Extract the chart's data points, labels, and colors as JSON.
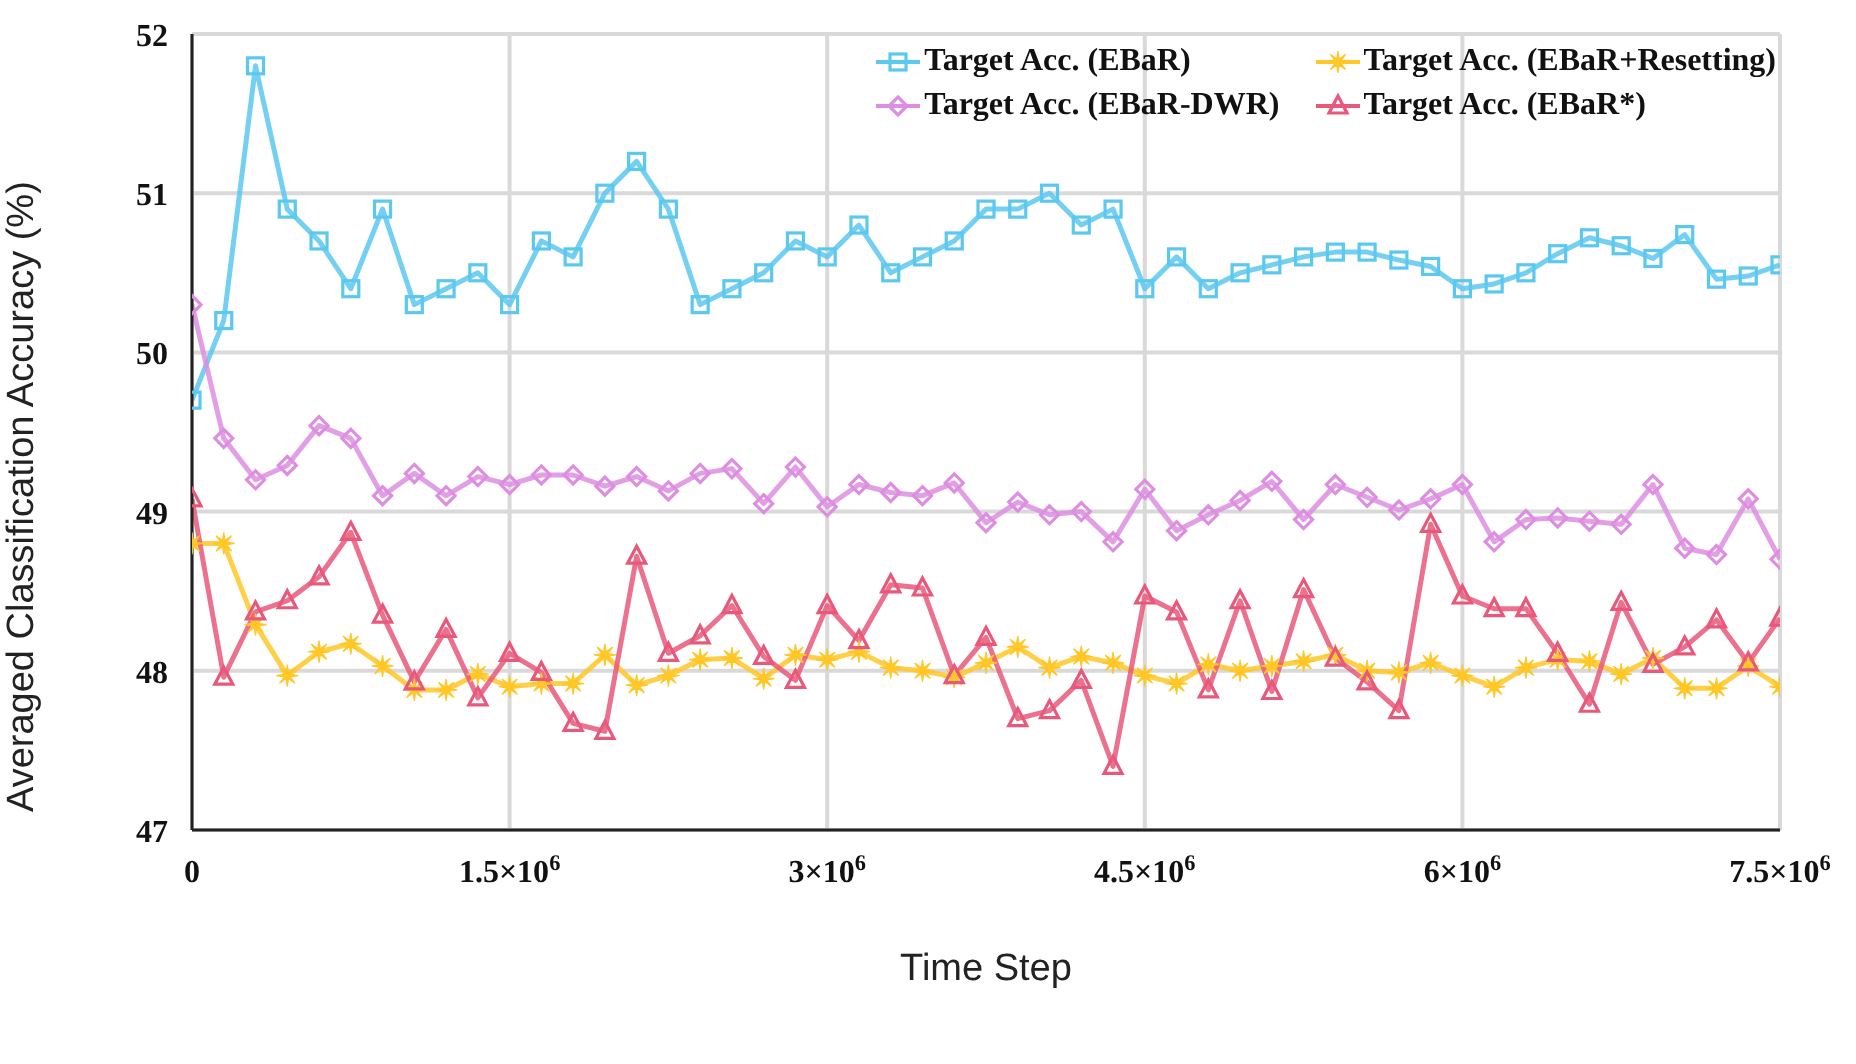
{
  "chart_data": {
    "type": "line",
    "xlabel": "Time Step",
    "ylabel": "Averaged Classification Accuracy (%)",
    "x": [
      0,
      150000,
      300000,
      450000,
      600000,
      750000,
      900000,
      1050000,
      1200000,
      1350000,
      1500000,
      1650000,
      1800000,
      1950000,
      2100000,
      2250000,
      2400000,
      2550000,
      2700000,
      2850000,
      3000000,
      3150000,
      3300000,
      3450000,
      3600000,
      3750000,
      3900000,
      4050000,
      4200000,
      4350000,
      4500000,
      4650000,
      4800000,
      4950000,
      5100000,
      5250000,
      5400000,
      5550000,
      5700000,
      5850000,
      6000000,
      6150000,
      6300000,
      6450000,
      6600000,
      6750000,
      6900000,
      7050000,
      7200000,
      7350000,
      7500000
    ],
    "xlim": [
      0,
      7500000
    ],
    "xticks": [
      0,
      {
        "value": 1500000,
        "label": "1.5×10$^{6}$"
      },
      {
        "value": 3000000,
        "label": "3×10$^{6}$"
      },
      {
        "value": 4500000,
        "label": "4.5×10$^{6}$"
      },
      {
        "value": 6000000,
        "label": "6×10$^{6}$"
      },
      {
        "value": 7500000,
        "label": "7.5×10$^{6}$"
      }
    ],
    "ylim": [
      47,
      52
    ],
    "yticks": [
      47,
      48,
      49,
      50,
      51,
      52
    ],
    "grid": true,
    "legend": "top right",
    "line_style": "solid",
    "series": [
      {
        "name": "Target Acc. (EBaR)",
        "color": "#5bc8f0",
        "marker": "square",
        "values": [
          49.7,
          50.2,
          51.8,
          50.9,
          50.7,
          50.4,
          50.9,
          50.3,
          50.4,
          50.5,
          50.3,
          50.7,
          50.6,
          51.0,
          51.2,
          50.9,
          50.3,
          50.4,
          50.5,
          50.7,
          50.6,
          50.8,
          50.5,
          50.6,
          50.7,
          50.9,
          50.9,
          51.0,
          50.8,
          50.9,
          50.4,
          50.6,
          50.4,
          50.5,
          50.55,
          50.6,
          50.63,
          50.63,
          50.58,
          50.54,
          50.4,
          50.43,
          50.5,
          50.62,
          50.72,
          50.67,
          50.59,
          50.74,
          50.46,
          50.48,
          50.55
        ]
      },
      {
        "name": "Target Acc. (EBaR+Resetting)",
        "color": "#ffc727",
        "marker": "star",
        "values": [
          48.8,
          48.8,
          48.29,
          47.97,
          48.12,
          48.17,
          48.03,
          47.88,
          47.88,
          47.98,
          47.9,
          47.92,
          47.92,
          48.1,
          47.91,
          47.97,
          48.07,
          48.08,
          47.95,
          48.1,
          48.07,
          48.12,
          48.02,
          48.0,
          47.96,
          48.05,
          48.15,
          48.02,
          48.09,
          48.05,
          47.97,
          47.92,
          48.04,
          48.0,
          48.03,
          48.06,
          48.1,
          48.0,
          47.99,
          48.05,
          47.97,
          47.9,
          48.02,
          48.07,
          48.06,
          47.98,
          48.08,
          47.89,
          47.89,
          48.03,
          47.9
        ]
      },
      {
        "name": "Target Acc. (EBaR-DWR)",
        "color": "#dd8ee0",
        "marker": "diamond",
        "values": [
          50.3,
          49.46,
          49.2,
          49.29,
          49.54,
          49.46,
          49.1,
          49.24,
          49.1,
          49.22,
          49.17,
          49.23,
          49.23,
          49.16,
          49.22,
          49.13,
          49.24,
          49.27,
          49.05,
          49.28,
          49.03,
          49.17,
          49.12,
          49.1,
          49.18,
          48.93,
          49.06,
          48.98,
          49.0,
          48.81,
          49.14,
          48.88,
          48.98,
          49.07,
          49.19,
          48.95,
          49.17,
          49.09,
          49.01,
          49.08,
          49.17,
          48.81,
          48.95,
          48.96,
          48.94,
          48.92,
          49.17,
          48.77,
          48.73,
          49.08,
          48.7
        ]
      },
      {
        "name": "Target Acc. (EBaR*)",
        "color": "#e8587a",
        "marker": "triangle",
        "values": [
          49.08,
          47.96,
          48.37,
          48.44,
          48.59,
          48.87,
          48.35,
          47.93,
          48.26,
          47.83,
          48.11,
          47.99,
          47.67,
          47.62,
          48.72,
          48.11,
          48.22,
          48.41,
          48.09,
          47.94,
          48.41,
          48.19,
          48.54,
          48.52,
          47.97,
          48.21,
          47.7,
          47.75,
          47.94,
          47.4,
          48.47,
          48.37,
          47.88,
          48.44,
          47.87,
          48.51,
          48.08,
          47.93,
          47.75,
          48.92,
          48.47,
          48.39,
          48.39,
          48.11,
          47.79,
          48.43,
          48.04,
          48.15,
          48.32,
          48.05,
          48.33
        ]
      }
    ]
  }
}
